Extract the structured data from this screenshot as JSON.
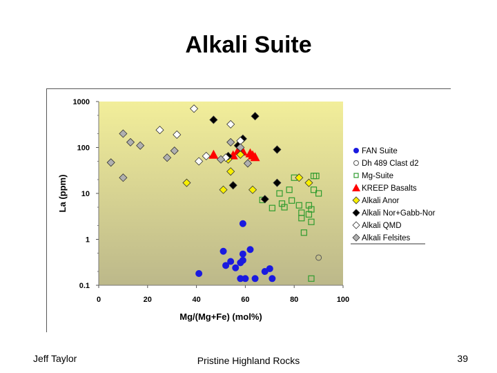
{
  "slide": {
    "title": "Alkali Suite",
    "footer_left": "Jeff Taylor",
    "footer_center": "Pristine Highland Rocks",
    "page_number": "39"
  },
  "colors": {
    "plot_gradient_top": "#f2ee9a",
    "plot_gradient_bottom": "#bcb88a",
    "fan": "#1a1adf",
    "mg": "#2e9b2e",
    "kreep": "#ff0000",
    "anor": "#f7ef00",
    "nor": "#000000",
    "qmd": "#ffffff",
    "felsites": "#b0b0b0"
  },
  "chart_data": {
    "type": "scatter",
    "title": "",
    "xlabel": "Mg/(Mg+Fe) (mol%)",
    "ylabel": "La (ppm)",
    "x_range": [
      0,
      100
    ],
    "y_range": [
      0.1,
      1000
    ],
    "y_scale": "log",
    "x_ticks": [
      "0",
      "20",
      "40",
      "60",
      "80",
      "100"
    ],
    "y_ticks": [
      "1000",
      "100",
      "10",
      "1",
      "0.1"
    ],
    "grid": false,
    "legend_position": "right",
    "series": [
      {
        "name": "FAN Suite",
        "marker": "circle",
        "color": "#1a1adf",
        "points": [
          [
            41,
            0.18
          ],
          [
            51,
            0.55
          ],
          [
            52,
            0.27
          ],
          [
            54,
            0.33
          ],
          [
            56,
            0.24
          ],
          [
            58,
            0.31
          ],
          [
            58,
            0.14
          ],
          [
            59,
            2.2
          ],
          [
            59,
            0.48
          ],
          [
            59,
            0.35
          ],
          [
            60,
            0.14
          ],
          [
            62,
            0.6
          ],
          [
            64,
            0.14
          ],
          [
            68,
            0.2
          ],
          [
            70,
            0.23
          ],
          [
            71,
            0.14
          ]
        ]
      },
      {
        "name": "Dh 489 Clast d2",
        "marker": "open-circle",
        "color": "#2e9b2e",
        "points": [
          [
            90,
            0.4
          ]
        ]
      },
      {
        "name": "Mg-Suite",
        "marker": "open-square",
        "color": "#2e9b2e",
        "points": [
          [
            67,
            7.2
          ],
          [
            71,
            4.8
          ],
          [
            76,
            5.0
          ],
          [
            79,
            7.0
          ],
          [
            82,
            5.5
          ],
          [
            83,
            3.8
          ],
          [
            83,
            2.9
          ],
          [
            84,
            1.4
          ],
          [
            86,
            3.5
          ],
          [
            86,
            5.5
          ],
          [
            87,
            4.5
          ],
          [
            87,
            2.4
          ],
          [
            87,
            0.14
          ],
          [
            88,
            24
          ],
          [
            88,
            12
          ],
          [
            89,
            24
          ],
          [
            90,
            10
          ],
          [
            80,
            22
          ],
          [
            78,
            12
          ],
          [
            74,
            10
          ],
          [
            75,
            6.0
          ]
        ]
      },
      {
        "name": "KREEP Basalts",
        "marker": "triangle",
        "color": "#ff0000",
        "points": [
          [
            47,
            70
          ],
          [
            55,
            68
          ],
          [
            57,
            85
          ],
          [
            58,
            90
          ],
          [
            59,
            82
          ],
          [
            62,
            75
          ],
          [
            63,
            68
          ],
          [
            64,
            62
          ]
        ]
      },
      {
        "name": "Alkali Anor",
        "marker": "diamond",
        "color": "#f7ef00",
        "points": [
          [
            36,
            17
          ],
          [
            51,
            12
          ],
          [
            53,
            55
          ],
          [
            54,
            30
          ],
          [
            58,
            70
          ],
          [
            63,
            12
          ],
          [
            82,
            22
          ],
          [
            86,
            17
          ]
        ]
      },
      {
        "name": "Alkali Nor+Gabb-Nor",
        "marker": "diamond",
        "color": "#000000",
        "points": [
          [
            47,
            400
          ],
          [
            53,
            65
          ],
          [
            55,
            15
          ],
          [
            57,
            110
          ],
          [
            59,
            155
          ],
          [
            64,
            480
          ],
          [
            68,
            7.5
          ],
          [
            73,
            90
          ],
          [
            73,
            17
          ]
        ]
      },
      {
        "name": "Alkali QMD",
        "marker": "diamond",
        "color": "#ffffff",
        "points": [
          [
            25,
            240
          ],
          [
            32,
            190
          ],
          [
            39,
            700
          ],
          [
            41,
            50
          ],
          [
            44,
            65
          ],
          [
            52,
            60
          ],
          [
            54,
            320
          ],
          [
            58,
            140
          ]
        ]
      },
      {
        "name": "Alkali Felsites",
        "marker": "diamond",
        "color": "#b0b0b0",
        "points": [
          [
            5,
            47
          ],
          [
            10,
            200
          ],
          [
            10,
            22
          ],
          [
            13,
            130
          ],
          [
            17,
            110
          ],
          [
            28,
            60
          ],
          [
            31,
            85
          ],
          [
            50,
            55
          ],
          [
            54,
            130
          ],
          [
            58,
            100
          ],
          [
            61,
            45
          ]
        ]
      }
    ]
  }
}
